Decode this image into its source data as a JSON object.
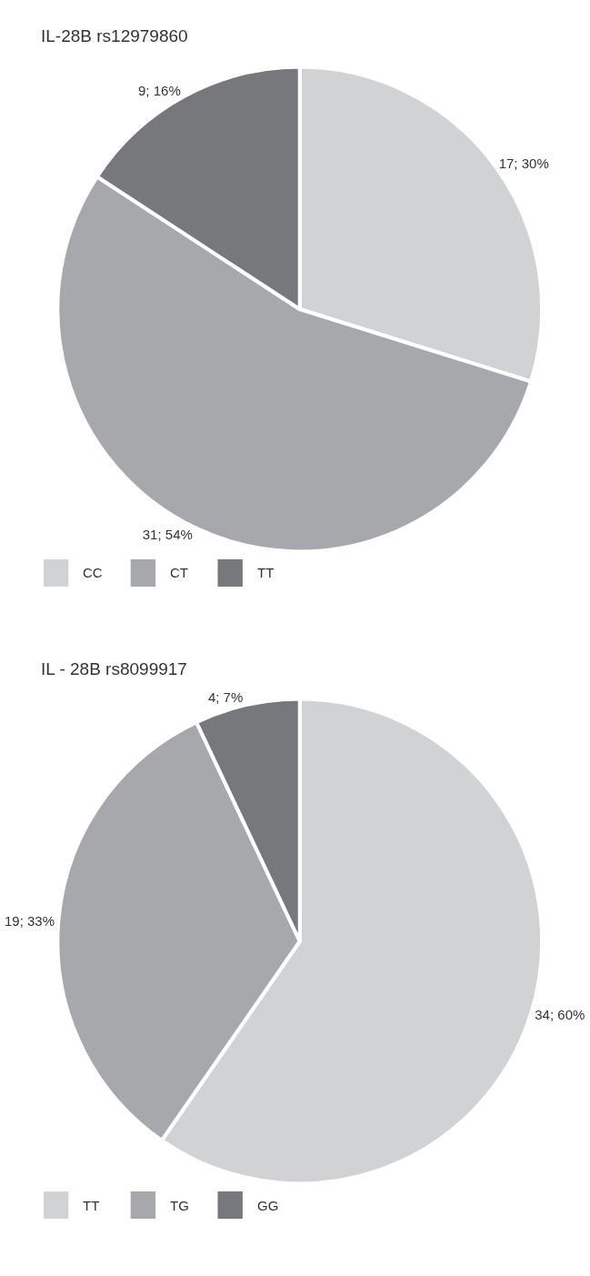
{
  "chart_data": [
    {
      "type": "pie",
      "title": "IL-28B rs12979860",
      "categories": [
        "CC",
        "CT",
        "TT"
      ],
      "values": [
        17,
        31,
        9
      ],
      "colors": [
        "#d1d2d4",
        "#a7a8ab",
        "#77787b"
      ],
      "value_labels": [
        "17; 30%",
        "31; 54%",
        "9; 16%"
      ],
      "legend": "bottom"
    },
    {
      "type": "pie",
      "title": "IL - 28B rs8099917",
      "categories": [
        "TT",
        "TG",
        "GG"
      ],
      "values": [
        34,
        19,
        4
      ],
      "colors": [
        "#d1d2d4",
        "#a7a8ab",
        "#77787b"
      ],
      "value_labels": [
        "34; 60%",
        "19; 33%",
        "4; 7%"
      ],
      "legend": "bottom"
    }
  ]
}
